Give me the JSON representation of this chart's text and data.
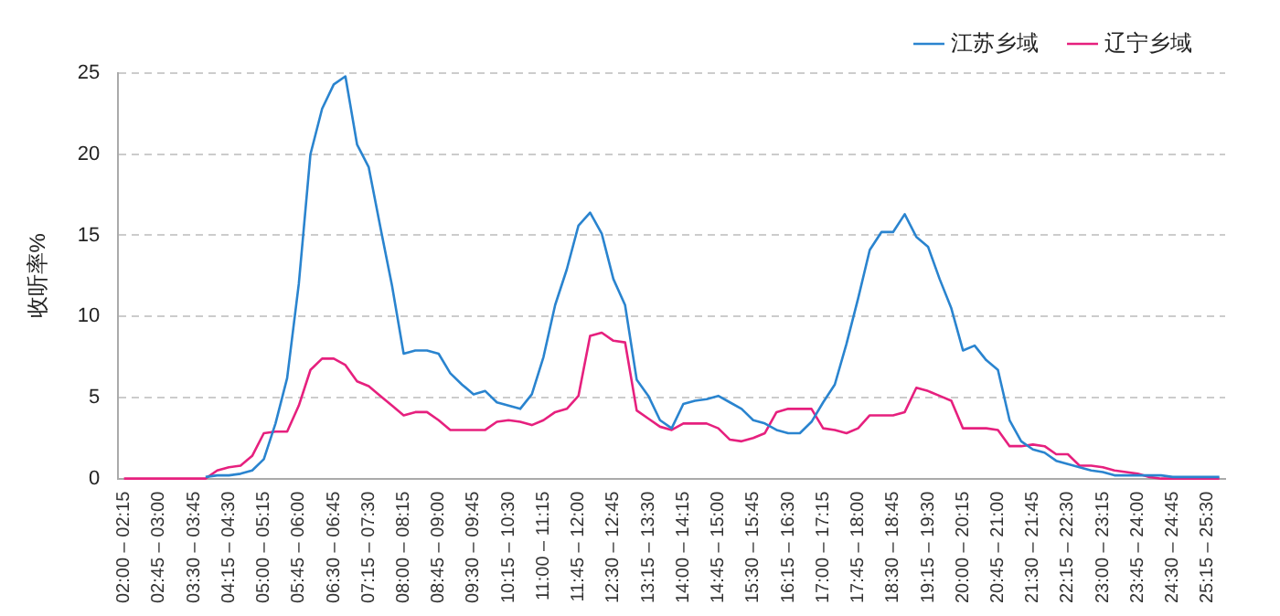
{
  "chart_data": {
    "type": "line",
    "ylabel": "收听率%",
    "categories": [
      "02:00 – 02:15",
      null,
      null,
      "02:45 – 03:00",
      null,
      null,
      "03:30 – 03:45",
      null,
      null,
      "04:15 – 04:30",
      null,
      null,
      "05:00 – 05:15",
      null,
      null,
      "05:45 – 06:00",
      null,
      null,
      "06:30 – 06:45",
      null,
      null,
      "07:15 – 07:30",
      null,
      null,
      "08:00 – 08:15",
      null,
      null,
      "08:45 – 09:00",
      null,
      null,
      "09:30 – 09:45",
      null,
      null,
      "10:15 – 10:30",
      null,
      null,
      "11:00 – 11:15",
      null,
      null,
      "11:45 – 12:00",
      null,
      null,
      "12:30 – 12:45",
      null,
      null,
      "13:15 – 13:30",
      null,
      null,
      "14:00 – 14:15",
      null,
      null,
      "14:45 – 15:00",
      null,
      null,
      "15:30 – 15:45",
      null,
      null,
      "16:15 – 16:30",
      null,
      null,
      "17:00 – 17:15",
      null,
      null,
      "17:45 – 18:00",
      null,
      null,
      "18:30 – 18:45",
      null,
      null,
      "19:15 – 19:30",
      null,
      null,
      "20:00 – 20:15",
      null,
      null,
      "20:45 – 21:00",
      null,
      null,
      "21:30 – 21:45",
      null,
      null,
      "22:15 – 22:30",
      null,
      null,
      "23:00 – 23:15",
      null,
      null,
      "23:45 – 24:00",
      null,
      null,
      "24:30 – 24:45",
      null,
      null,
      "25:15 – 25:30",
      null
    ],
    "series": [
      {
        "name": "江苏乡域",
        "color": "#2a84cf",
        "values": [
          null,
          null,
          null,
          null,
          null,
          null,
          null,
          0.1,
          0.2,
          0.2,
          0.3,
          0.5,
          1.2,
          3.4,
          6.2,
          12,
          20,
          22.8,
          24.3,
          24.8,
          20.6,
          19.2,
          15.5,
          11.9,
          7.7,
          7.9,
          7.9,
          7.7,
          6.5,
          5.8,
          5.2,
          5.4,
          4.7,
          4.5,
          4.3,
          5.2,
          7.5,
          10.7,
          12.9,
          15.6,
          16.4,
          15.1,
          12.3,
          10.7,
          6.1,
          5.1,
          3.6,
          3.1,
          4.6,
          4.8,
          4.9,
          5.1,
          4.7,
          4.3,
          3.6,
          3.4,
          3,
          2.8,
          2.8,
          3.5,
          4.7,
          5.8,
          8.3,
          11.1,
          14.1,
          15.2,
          15.2,
          16.3,
          14.9,
          14.3,
          12.3,
          10.5,
          7.9,
          8.2,
          7.3,
          6.7,
          3.6,
          2.3,
          1.8,
          1.6,
          1.1,
          0.9,
          0.7,
          0.5,
          0.4,
          0.2,
          0.2,
          0.2,
          0.2,
          0.2,
          0.1,
          0.1,
          0.1,
          0.1,
          0.1
        ]
      },
      {
        "name": "辽宁乡域",
        "color": "#e6207e",
        "values": [
          0,
          0,
          0,
          0,
          0,
          0,
          0,
          0,
          0.5,
          0.7,
          0.8,
          1.4,
          2.8,
          2.9,
          2.9,
          4.5,
          6.7,
          7.4,
          7.4,
          7,
          6,
          5.7,
          5.1,
          4.5,
          3.9,
          4.1,
          4.1,
          3.6,
          3,
          3,
          3,
          3,
          3.5,
          3.6,
          3.5,
          3.3,
          3.6,
          4.1,
          4.3,
          5.1,
          8.8,
          9,
          8.5,
          8.4,
          4.2,
          3.7,
          3.2,
          3,
          3.4,
          3.4,
          3.4,
          3.1,
          2.4,
          2.3,
          2.5,
          2.8,
          4.1,
          4.3,
          4.3,
          4.3,
          3.1,
          3,
          2.8,
          3.1,
          3.9,
          3.9,
          3.9,
          4.1,
          5.6,
          5.4,
          5.1,
          4.8,
          3.1,
          3.1,
          3.1,
          3,
          2,
          2,
          2.1,
          2,
          1.5,
          1.5,
          0.8,
          0.8,
          0.7,
          0.5,
          0.4,
          0.3,
          0.1,
          0,
          0,
          0,
          0,
          0,
          0
        ]
      }
    ],
    "ylim": [
      0,
      25
    ],
    "yticks": [
      0,
      5,
      10,
      15,
      20,
      25
    ],
    "grid": "y",
    "legend": "top right",
    "marker": "none",
    "line_style": "solid"
  }
}
